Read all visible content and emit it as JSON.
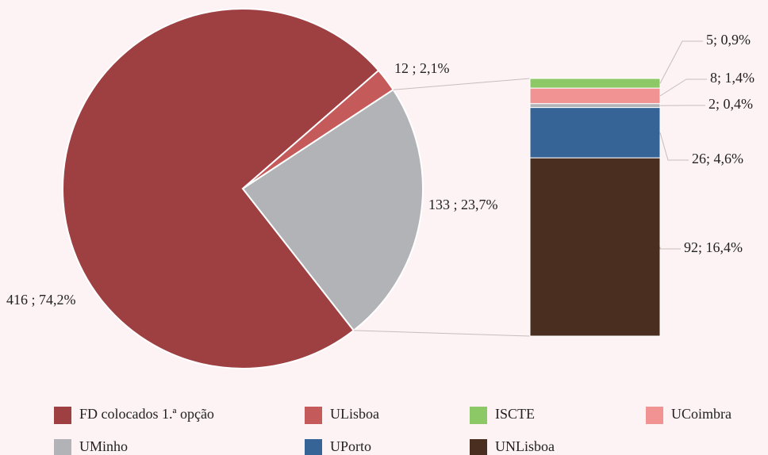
{
  "chart_data": {
    "type": "pie-of-bar",
    "pie": {
      "categories": [
        "FD colocados 1.ª opção",
        "ULisboa",
        null
      ],
      "values": [
        416,
        12,
        133
      ],
      "value_labels": [
        "416 ; 74,2%",
        "12 ; 2,1%",
        "133 ; 23,7%"
      ],
      "colors": [
        "#9e4042",
        "#c55a5a",
        "#b1b3b6"
      ]
    },
    "bar": {
      "categories": [
        "ISCTE",
        "UCoimbra",
        "UMinho",
        "UPorto",
        "UNLisboa"
      ],
      "values": [
        5,
        8,
        2,
        26,
        92
      ],
      "value_labels": [
        "5; 0,9%",
        "8; 1,4%",
        "2; 0,4%",
        "26; 4,6%",
        "92; 16,4%"
      ],
      "colors": [
        "#8cc866",
        "#f19393",
        "#b1b3b6",
        "#376497",
        "#4a2e20"
      ]
    }
  }
}
